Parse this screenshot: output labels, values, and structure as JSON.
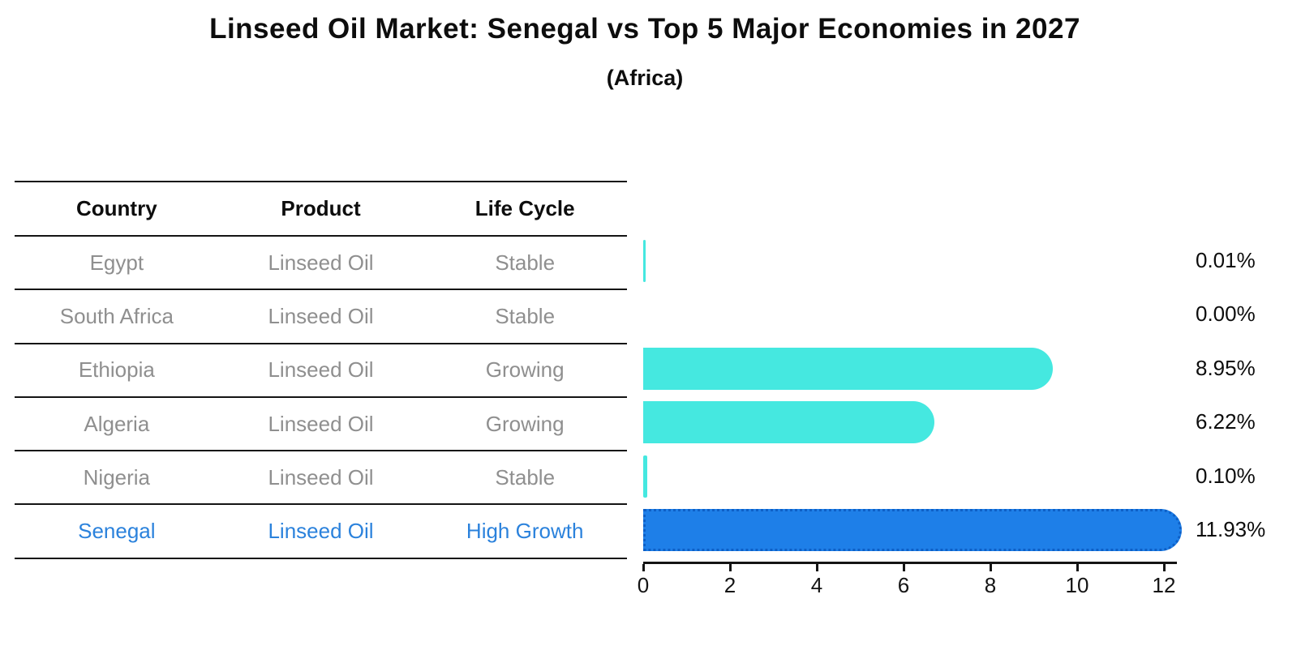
{
  "title": "Linseed Oil Market: Senegal vs Top 5 Major Economies in 2027",
  "subtitle": "(Africa)",
  "table": {
    "headers": [
      "Country",
      "Product",
      "Life Cycle"
    ],
    "rows": [
      {
        "country": "Egypt",
        "product": "Linseed Oil",
        "life_cycle": "Stable",
        "highlight": false
      },
      {
        "country": "South Africa",
        "product": "Linseed Oil",
        "life_cycle": "Stable",
        "highlight": false
      },
      {
        "country": "Ethiopia",
        "product": "Linseed Oil",
        "life_cycle": "Growing",
        "highlight": false
      },
      {
        "country": "Algeria",
        "product": "Linseed Oil",
        "life_cycle": "Growing",
        "highlight": false
      },
      {
        "country": "Nigeria",
        "product": "Linseed Oil",
        "life_cycle": "Stable",
        "highlight": false
      },
      {
        "country": "Senegal",
        "product": "Linseed Oil",
        "life_cycle": "High Growth",
        "highlight": true
      }
    ]
  },
  "chart_data": {
    "type": "bar",
    "orientation": "horizontal",
    "title": "Linseed Oil Market: Senegal vs Top 5 Major Economies in 2027",
    "subtitle": "(Africa)",
    "categories": [
      "Egypt",
      "South Africa",
      "Ethiopia",
      "Algeria",
      "Nigeria",
      "Senegal"
    ],
    "values": [
      0.01,
      0.0,
      8.95,
      6.22,
      0.1,
      11.93
    ],
    "value_labels": [
      "0.01%",
      "0.00%",
      "8.95%",
      "6.22%",
      "0.10%",
      "11.93%"
    ],
    "unit": "percent",
    "x_ticks": [
      0,
      2,
      4,
      6,
      8,
      10,
      12
    ],
    "xlim": [
      0,
      12.3
    ],
    "grid": false,
    "legend": false,
    "highlight_index": 5,
    "highlight_style": "dotted-edge"
  },
  "colors": {
    "bar_default": "#45E8E0",
    "bar_highlight": "#1E7FE8",
    "bar_highlight_edge": "#0D5FC6",
    "row_text": "#8f8f8f",
    "highlight_text": "#2b82dc",
    "header_text": "#0d0d0d",
    "axis": "#141414",
    "background": "#ffffff"
  }
}
